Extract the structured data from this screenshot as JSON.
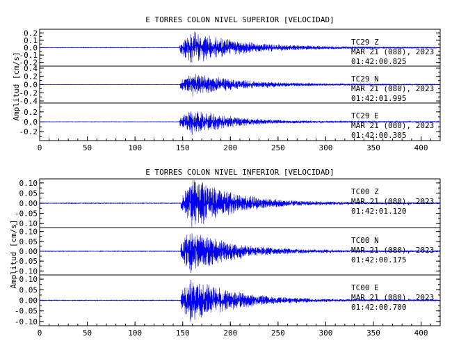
{
  "chart_data": [
    {
      "type": "line",
      "title": "E TORRES COLON NIVEL SUPERIOR [VELOCIDAD]",
      "xlabel": "",
      "ylabel": "Amplitud [cm/s]",
      "xlim": [
        0,
        420
      ],
      "x_ticks": [
        "0",
        "50",
        "100",
        "150",
        "200",
        "250",
        "300",
        "350",
        "400"
      ],
      "grid": false,
      "series": [
        {
          "name": "TC29 Z",
          "station": "TC29",
          "component": "Z",
          "date": "MAR 21 (080), 2023",
          "time": "01:42:00.825",
          "ylim": [
            -0.25,
            0.25
          ],
          "y_ticks": [
            "0.2",
            "0.1",
            "0.0",
            "-0.1",
            "-0.2"
          ],
          "onset_s": 147,
          "peak_time_s": 160,
          "peak_amplitude": 0.2,
          "decay_end_s": 330
        },
        {
          "name": "TC29 N",
          "station": "TC29",
          "component": "N",
          "date": "MAR 21 (080), 2023",
          "time": "01:42:01.995",
          "ylim": [
            -0.45,
            0.45
          ],
          "y_ticks": [
            "0.4",
            "0.2",
            "0.0",
            "-0.2",
            "-0.4"
          ],
          "onset_s": 147,
          "peak_time_s": 160,
          "peak_amplitude": 0.25,
          "decay_end_s": 330
        },
        {
          "name": "TC29 E",
          "station": "TC29",
          "component": "E",
          "date": "MAR 21 (080), 2023",
          "time": "01:42:00.305",
          "ylim": [
            -0.38,
            0.38
          ],
          "y_ticks": [
            "0.2",
            "0.0",
            "-0.2"
          ],
          "onset_s": 147,
          "peak_time_s": 160,
          "peak_amplitude": 0.24,
          "decay_end_s": 300
        }
      ]
    },
    {
      "type": "line",
      "title": "E TORRES COLON NIVEL INFERIOR [VELOCIDAD]",
      "xlabel": "",
      "ylabel": "Amplitud [cm/s]",
      "xlim": [
        0,
        420
      ],
      "x_ticks": [
        "0",
        "50",
        "100",
        "150",
        "200",
        "250",
        "300",
        "350",
        "400"
      ],
      "grid": false,
      "series": [
        {
          "name": "TC00 Z",
          "station": "TC00",
          "component": "Z",
          "date": "MAR 21 (080), 2023",
          "time": "01:42:01.120",
          "ylim": [
            -0.12,
            0.12
          ],
          "y_ticks": [
            "0.10",
            "0.05",
            "0.00",
            "-0.05",
            "-0.10"
          ],
          "onset_s": 148,
          "peak_time_s": 159,
          "peak_amplitude": 0.115,
          "decay_end_s": 300
        },
        {
          "name": "TC00 N",
          "station": "TC00",
          "component": "N",
          "date": "MAR 21 (080), 2023",
          "time": "01:42:00.175",
          "ylim": [
            -0.12,
            0.12
          ],
          "y_ticks": [
            "0.10",
            "0.05",
            "0.00",
            "-0.05",
            "-0.10"
          ],
          "onset_s": 148,
          "peak_time_s": 158,
          "peak_amplitude": 0.1,
          "decay_end_s": 300
        },
        {
          "name": "TC00 E",
          "station": "TC00",
          "component": "E",
          "date": "MAR 21 (080), 2023",
          "time": "01:42:00.700",
          "ylim": [
            -0.12,
            0.12
          ],
          "y_ticks": [
            "0.10",
            "0.05",
            "0.00",
            "-0.05",
            "-0.10"
          ],
          "onset_s": 148,
          "peak_time_s": 159,
          "peak_amplitude": 0.1,
          "decay_end_s": 300
        }
      ]
    }
  ],
  "colors": {
    "trace": "#0000ee",
    "axes": "#000000",
    "background": "#ffffff"
  }
}
